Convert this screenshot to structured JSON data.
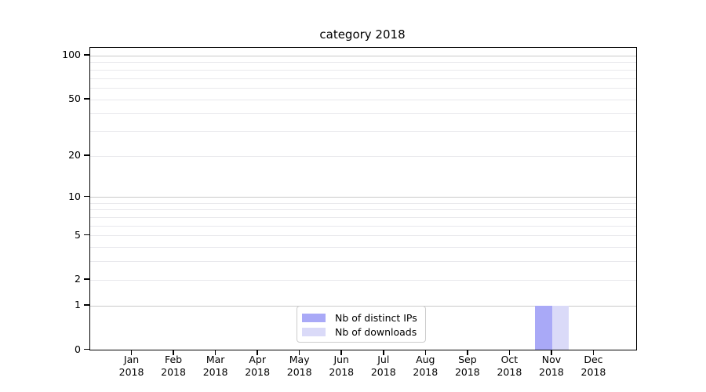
{
  "chart_data": {
    "type": "bar",
    "title": "category 2018",
    "categories": [
      {
        "month": "Jan",
        "year": "2018"
      },
      {
        "month": "Feb",
        "year": "2018"
      },
      {
        "month": "Mar",
        "year": "2018"
      },
      {
        "month": "Apr",
        "year": "2018"
      },
      {
        "month": "May",
        "year": "2018"
      },
      {
        "month": "Jun",
        "year": "2018"
      },
      {
        "month": "Jul",
        "year": "2018"
      },
      {
        "month": "Aug",
        "year": "2018"
      },
      {
        "month": "Sep",
        "year": "2018"
      },
      {
        "month": "Oct",
        "year": "2018"
      },
      {
        "month": "Nov",
        "year": "2018"
      },
      {
        "month": "Dec",
        "year": "2018"
      }
    ],
    "series": [
      {
        "name": "Nb of distinct IPs",
        "color": "#a9a9f7",
        "values": [
          0,
          0,
          0,
          0,
          0,
          0,
          0,
          0,
          0,
          0,
          1,
          0
        ]
      },
      {
        "name": "Nb of downloads",
        "color": "#dadaf8",
        "values": [
          0,
          0,
          0,
          0,
          0,
          0,
          0,
          0,
          0,
          0,
          1,
          0
        ]
      }
    ],
    "xlabel": "",
    "ylabel": "",
    "y_axis": {
      "scale": "log1p",
      "tick_labels": [
        0,
        1,
        2,
        5,
        10,
        20,
        50,
        100
      ],
      "major_gridlines": [
        1,
        10,
        100
      ],
      "minor_gridlines": [
        2,
        3,
        4,
        5,
        6,
        7,
        8,
        9,
        20,
        30,
        40,
        50,
        60,
        70,
        80,
        90
      ],
      "range_top": 113
    },
    "legend": {
      "position": "lower center"
    },
    "grid": true
  }
}
